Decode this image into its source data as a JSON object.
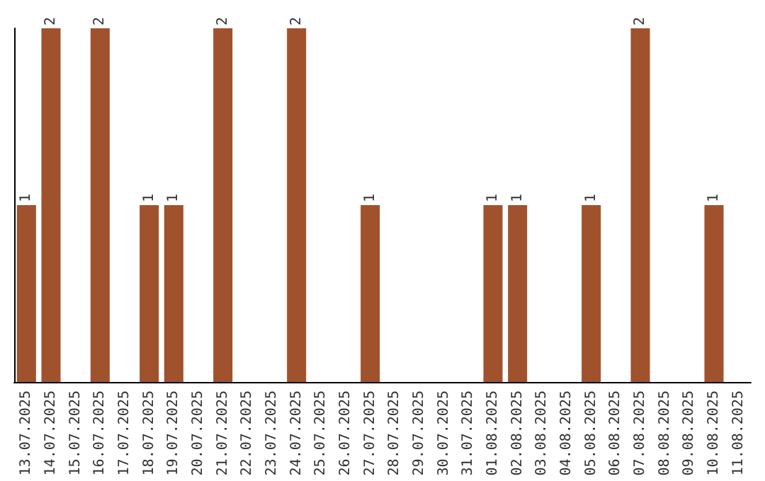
{
  "chart_data": {
    "type": "bar",
    "categories": [
      "13.07.2025",
      "14.07.2025",
      "15.07.2025",
      "16.07.2025",
      "17.07.2025",
      "18.07.2025",
      "19.07.2025",
      "20.07.2025",
      "21.07.2025",
      "22.07.2025",
      "23.07.2025",
      "24.07.2025",
      "25.07.2025",
      "26.07.2025",
      "27.07.2025",
      "28.07.2025",
      "29.07.2025",
      "30.07.2025",
      "31.07.2025",
      "01.08.2025",
      "02.08.2025",
      "03.08.2025",
      "04.08.2025",
      "05.08.2025",
      "06.08.2025",
      "07.08.2025",
      "08.08.2025",
      "09.08.2025",
      "10.08.2025",
      "11.08.2025"
    ],
    "series": [
      {
        "color": "#a0522d",
        "values": [
          1,
          2,
          0,
          2,
          0,
          1,
          1,
          0,
          2,
          0,
          0,
          2,
          0,
          0,
          1,
          0,
          0,
          0,
          0,
          1,
          1,
          0,
          0,
          1,
          0,
          2,
          0,
          0,
          1,
          0
        ],
        "value_labels": [
          "1",
          "2",
          null,
          "2",
          null,
          "1",
          "1",
          null,
          "2",
          null,
          null,
          "2",
          null,
          null,
          "1",
          null,
          null,
          null,
          null,
          "1",
          "1",
          null,
          null,
          "1",
          null,
          "2",
          null,
          null,
          "1",
          null
        ]
      }
    ]
  }
}
